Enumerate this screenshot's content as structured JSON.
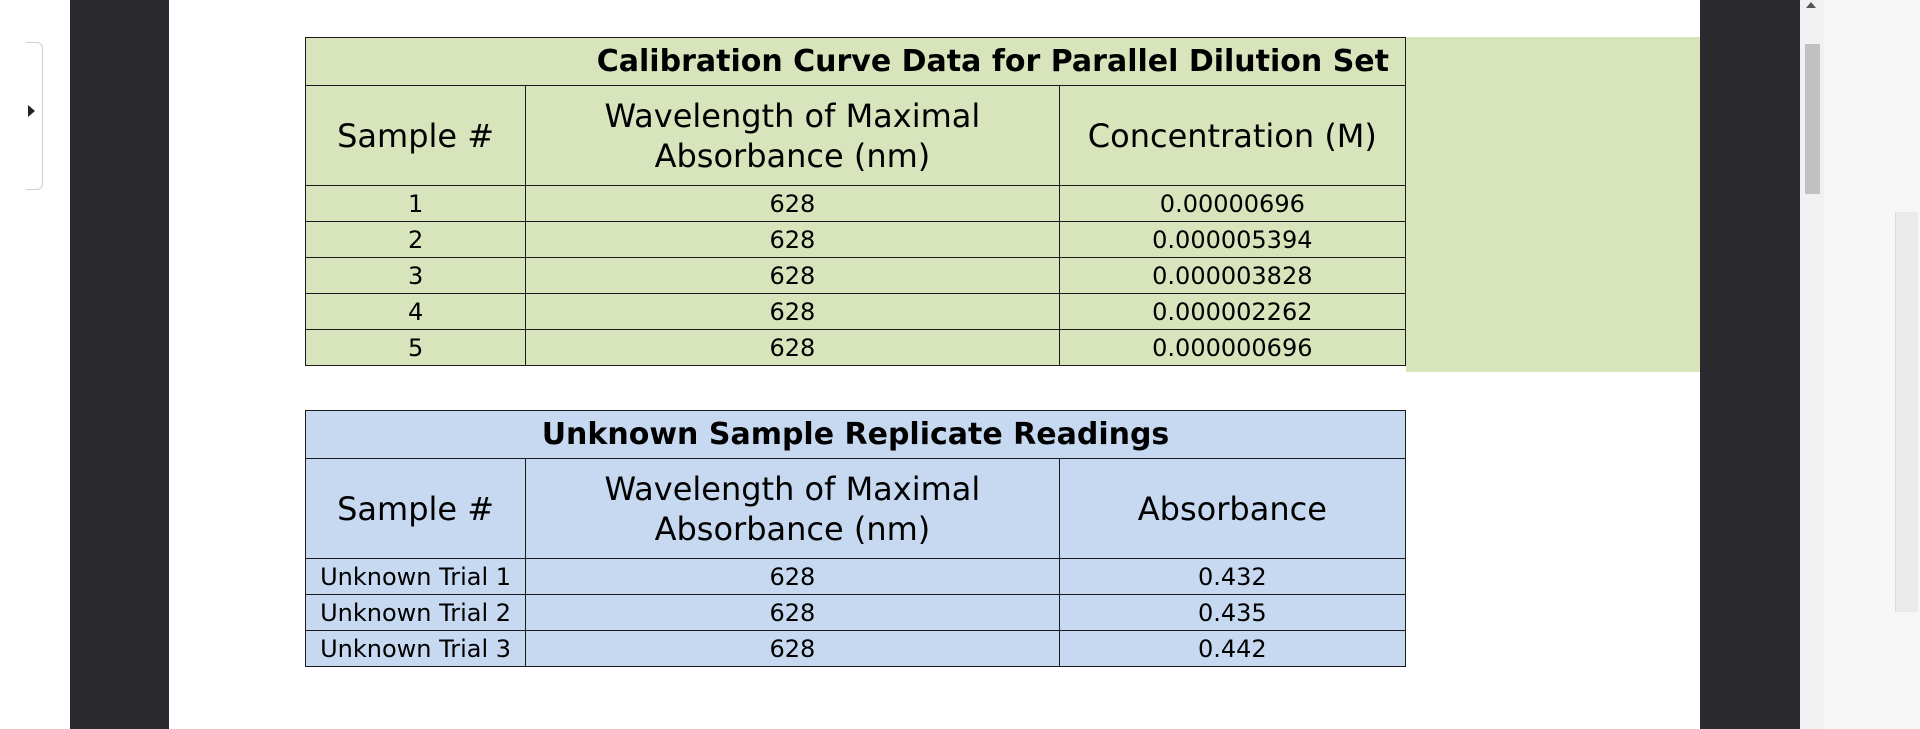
{
  "calibration_table": {
    "title": "Calibration Curve Data for Parallel Dilution Set",
    "headers": [
      "Sample #",
      "Wavelength of Maximal Absorbance (nm)",
      "Concentration (M)"
    ],
    "rows": [
      [
        "1",
        "628",
        "0.00000696"
      ],
      [
        "2",
        "628",
        "0.000005394"
      ],
      [
        "3",
        "628",
        "0.000003828"
      ],
      [
        "4",
        "628",
        "0.000002262"
      ],
      [
        "5",
        "628",
        "0.000000696"
      ]
    ]
  },
  "unknown_table": {
    "title": "Unknown Sample Replicate Readings",
    "headers": [
      "Sample #",
      "Wavelength of Maximal Absorbance (nm)",
      "Absorbance"
    ],
    "rows": [
      [
        "Unknown Trial 1",
        "628",
        "0.432"
      ],
      [
        "Unknown Trial 2",
        "628",
        "0.435"
      ],
      [
        "Unknown Trial 3",
        "628",
        "0.442"
      ]
    ]
  },
  "colors": {
    "calibration_fill": "#d8e4bc",
    "unknown_fill": "#c6d9f0",
    "dark_band": "#2b2b2f"
  },
  "icons": {
    "collapse": "caret-right-icon",
    "scroll_up": "caret-up-icon"
  }
}
